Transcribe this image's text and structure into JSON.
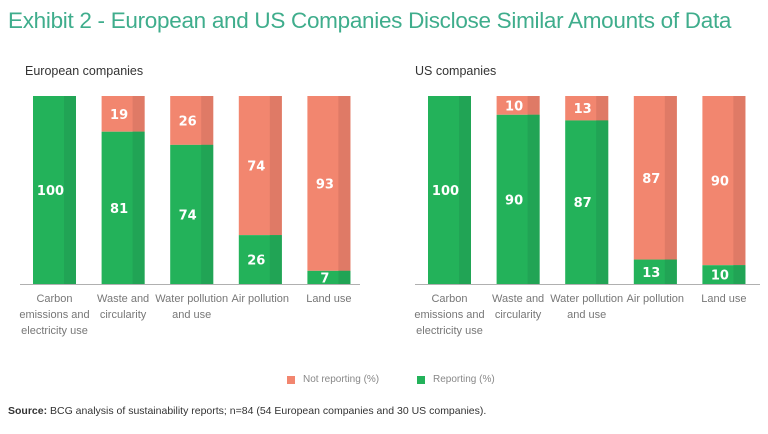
{
  "title": "Exhibit 2 - European and US Companies Disclose Similar Amounts of Data",
  "legend": {
    "not_reporting": "Not reporting (%)",
    "reporting": "Reporting (%)"
  },
  "colors": {
    "title": "#3fad8c",
    "reporting": "#23b25a",
    "reporting_shade": "#21a455",
    "not_reporting": "#f2866f",
    "not_reporting_shade": "#df7a66"
  },
  "source": {
    "label": "Source:",
    "text": " BCG analysis of sustainability reports; n=84 (54 European companies and 30 US companies)."
  },
  "chart_data": [
    {
      "type": "bar",
      "stacked": true,
      "title": "European companies",
      "categories": [
        "Carbon emissions and electricity use",
        "Waste and circularity",
        "Water pollution and use",
        "Air pollution",
        "Land use"
      ],
      "series": [
        {
          "name": "Reporting (%)",
          "values": [
            100,
            81,
            74,
            26,
            7
          ]
        },
        {
          "name": "Not reporting (%)",
          "values": [
            0,
            19,
            26,
            74,
            93
          ]
        }
      ],
      "ylim": [
        0,
        100
      ],
      "legend": "bottom-center",
      "grid": false
    },
    {
      "type": "bar",
      "stacked": true,
      "title": "US companies",
      "categories": [
        "Carbon emissions and electricity use",
        "Waste and circularity",
        "Water pollution and use",
        "Air pollution",
        "Land use"
      ],
      "series": [
        {
          "name": "Reporting (%)",
          "values": [
            100,
            90,
            87,
            13,
            10
          ]
        },
        {
          "name": "Not reporting (%)",
          "values": [
            0,
            10,
            13,
            87,
            90
          ]
        }
      ],
      "ylim": [
        0,
        100
      ],
      "legend": "bottom-center",
      "grid": false
    }
  ]
}
